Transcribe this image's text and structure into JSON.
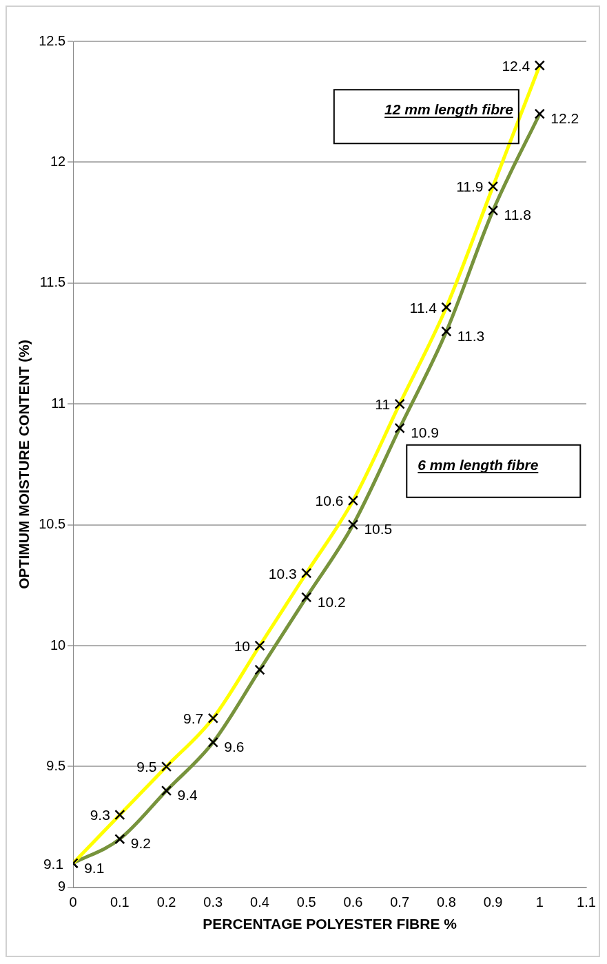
{
  "chart_data": {
    "type": "line",
    "xlabel": "PERCENTAGE POLYESTER FIBRE %",
    "ylabel": "OPTIMUM MOISTURE CONTENT (%)",
    "x": [
      0,
      0.1,
      0.2,
      0.3,
      0.4,
      0.5,
      0.6,
      0.7,
      0.8,
      0.9,
      1
    ],
    "series": [
      {
        "name": "12 mm length fibre",
        "color": "#ffff00",
        "marker": "cross",
        "values": [
          9.1,
          9.3,
          9.5,
          9.7,
          10,
          10.3,
          10.6,
          11,
          11.4,
          11.9,
          12.4
        ],
        "value_labels": [
          "9.1",
          "9.3",
          "9.5",
          "9.7",
          "10",
          "10.3",
          "10.6",
          "11",
          "11.4",
          "11.9",
          "12.4"
        ]
      },
      {
        "name": "6 mm length fibre",
        "color": "#77933c",
        "marker": "cross",
        "values": [
          9.1,
          9.2,
          9.4,
          9.6,
          9.9,
          10.2,
          10.5,
          10.9,
          11.3,
          11.8,
          12.2
        ],
        "value_labels": [
          "9.1",
          "9.2",
          "9.4",
          "9.6",
          null,
          "10.2",
          "10.5",
          "10.9",
          "11.3",
          "11.8",
          "12.2"
        ]
      }
    ],
    "xlim": [
      0,
      1.1
    ],
    "xticks": [
      0,
      0.1,
      0.2,
      0.3,
      0.4,
      0.5,
      0.6,
      0.7,
      0.8,
      0.9,
      1,
      1.1
    ],
    "ylim": [
      9,
      12.5
    ],
    "yticks": [
      9,
      9.5,
      10,
      10.5,
      11,
      11.5,
      12,
      12.5
    ],
    "grid": "y",
    "legend": false
  }
}
